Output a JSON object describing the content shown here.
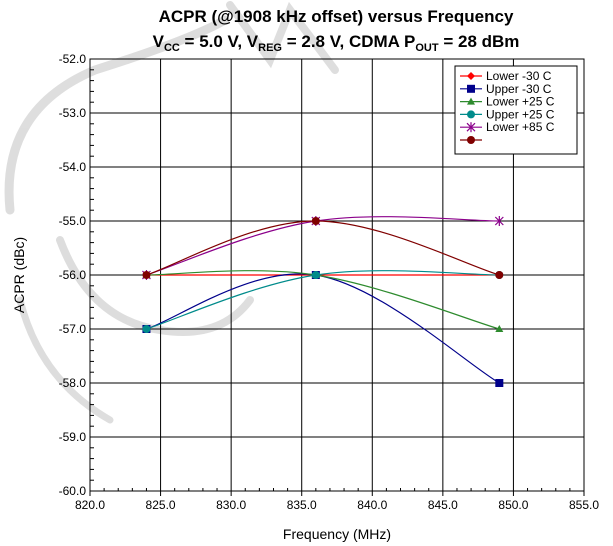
{
  "chart_data": {
    "type": "line",
    "title_line1": "ACPR (@1908 kHz offset) versus Frequency",
    "title_line2": {
      "vcc_label": "V",
      "vcc_sub": "CC",
      "vcc_value": " = 5.0 V, ",
      "vreg_label": "V",
      "vreg_sub": "REG",
      "vreg_value": " = 2.8 V, CDMA P",
      "pout_sub": "OUT",
      "pout_value": " = 28 dBm"
    },
    "xlabel": "Frequency (MHz)",
    "ylabel": "ACPR (dBc)",
    "xlim": [
      820.0,
      855.0
    ],
    "ylim": [
      -60.0,
      -52.0
    ],
    "x_ticks": [
      "820.0",
      "825.0",
      "830.0",
      "835.0",
      "840.0",
      "845.0",
      "850.0",
      "855.0"
    ],
    "y_ticks": [
      "-52.0",
      "-53.0",
      "-54.0",
      "-55.0",
      "-56.0",
      "-57.0",
      "-58.0",
      "-59.0",
      "-60.0"
    ],
    "grid": true,
    "legend_position": "top-right",
    "series": [
      {
        "name": "Lower -30 C",
        "color": "#ff0000",
        "marker": "diamond",
        "x": [
          824,
          836,
          849
        ],
        "y": [
          -56.0,
          -56.0,
          -56.0
        ]
      },
      {
        "name": "Upper -30 C",
        "color": "#00008b",
        "marker": "square",
        "x": [
          824,
          836,
          849
        ],
        "y": [
          -57.0,
          -56.0,
          -58.0
        ]
      },
      {
        "name": "Lower +25 C",
        "color": "#2e8b2e",
        "marker": "triangle",
        "x": [
          824,
          836,
          849
        ],
        "y": [
          -56.0,
          -56.0,
          -57.0
        ]
      },
      {
        "name": "Upper +25 C",
        "color": "#008b8b",
        "marker": "circle",
        "x": [
          824,
          836,
          849
        ],
        "y": [
          -57.0,
          -56.0,
          -56.0
        ]
      },
      {
        "name": "Lower +85 C",
        "color": "#8b008b",
        "marker": "star",
        "x": [
          824,
          836,
          849
        ],
        "y": [
          -56.0,
          -55.0,
          -55.0
        ]
      },
      {
        "name": "",
        "color": "#800000",
        "marker": "circle",
        "x": [
          824,
          836,
          849
        ],
        "y": [
          -56.0,
          -55.0,
          -56.0
        ]
      }
    ]
  }
}
